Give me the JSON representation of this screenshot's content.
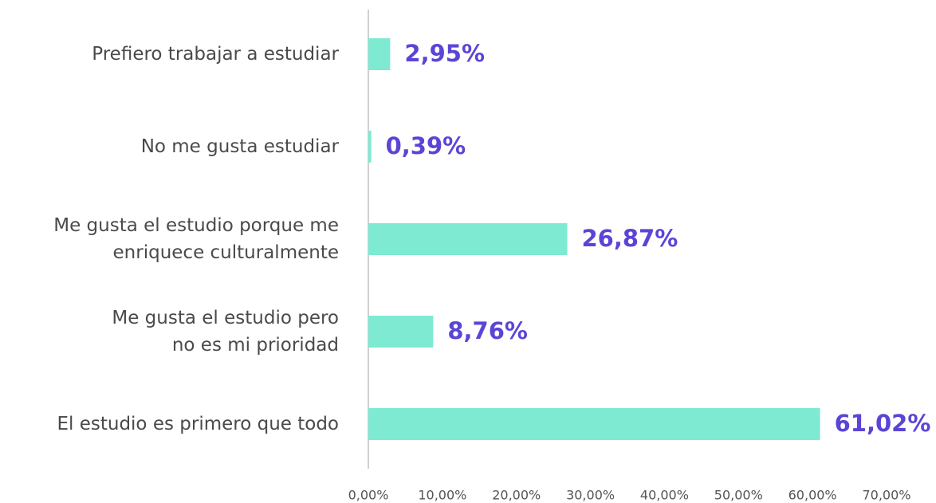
{
  "chart_data": {
    "type": "bar",
    "orientation": "horizontal",
    "categories": [
      "Prefiero trabajar a estudiar",
      "No me gusta estudiar",
      "Me gusta el estudio porque me\nenriquece culturalmente",
      "Me gusta el estudio pero\nno es mi prioridad",
      "El estudio es primero que todo"
    ],
    "values": [
      2.95,
      0.39,
      26.87,
      8.76,
      61.02
    ],
    "value_labels": [
      "2,95%",
      "0,39%",
      "26,87%",
      "8,76%",
      "61,02%"
    ],
    "color": "#7eead2",
    "label_color": "#5a45d6",
    "xlim": [
      0,
      70
    ],
    "xticks": [
      {
        "value": 0,
        "label": "0,00%"
      },
      {
        "value": 10,
        "label": "10,00%"
      },
      {
        "value": 20,
        "label": "20,00%"
      },
      {
        "value": 30,
        "label": "30,00%"
      },
      {
        "value": 40,
        "label": "40,00%"
      },
      {
        "value": 50,
        "label": "50,00%"
      },
      {
        "value": 60,
        "label": "60,00%"
      },
      {
        "value": 70,
        "label": "70,00%"
      }
    ],
    "grid": false
  }
}
